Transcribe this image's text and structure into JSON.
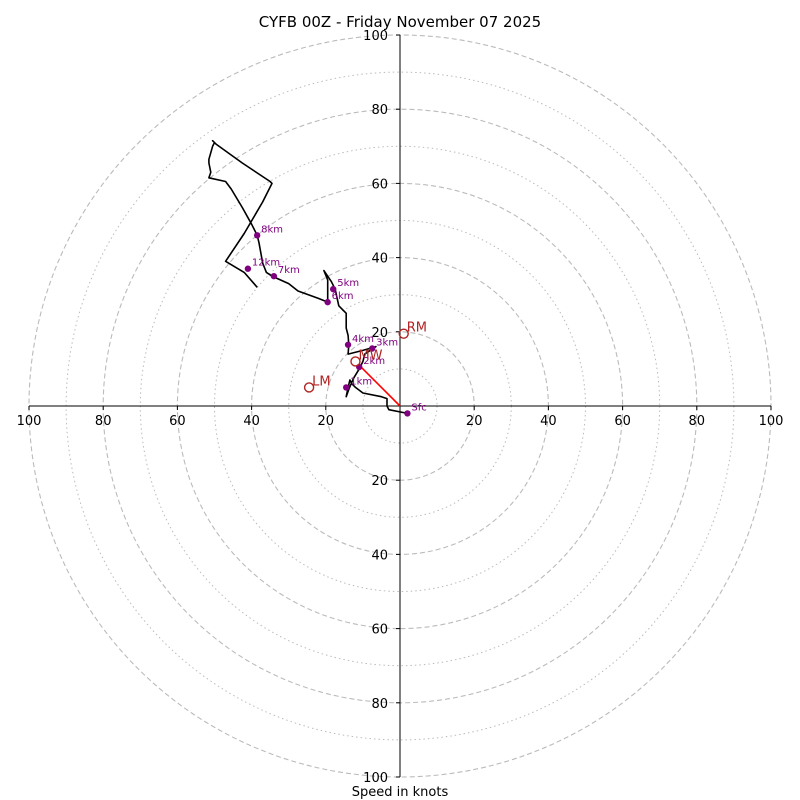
{
  "chart_data": {
    "type": "hodograph",
    "title": "CYFB 00Z - Friday November 07 2025",
    "xlabel": "Speed in knots",
    "units": "knots",
    "ring_max": 100,
    "rings_dashed": [
      20,
      40,
      60,
      80,
      100
    ],
    "rings_dotted": [
      10,
      30,
      50,
      70,
      90
    ],
    "x_tick_labels": [
      "100",
      "80",
      "60",
      "40",
      "20",
      "20",
      "40",
      "60",
      "80",
      "100"
    ],
    "x_tick_values": [
      -100,
      -80,
      -60,
      -40,
      -20,
      20,
      40,
      60,
      80,
      100
    ],
    "y_tick_labels": [
      "100",
      "80",
      "60",
      "40",
      "20",
      "20",
      "40",
      "60",
      "80",
      "100"
    ],
    "y_tick_values": [
      100,
      80,
      60,
      40,
      20,
      -20,
      -40,
      -60,
      -80,
      -100
    ],
    "colors": {
      "trace": "#000000",
      "height_marker": "#800080",
      "motion": "#b22222",
      "shear_vector": "#ff0000",
      "grid": "#bbbbbb"
    },
    "trace": [
      [
        2,
        -2
      ],
      [
        -3,
        -1
      ],
      [
        -3.5,
        0
      ],
      [
        -3.5,
        2
      ],
      [
        -5,
        2.5
      ],
      [
        -10,
        3.5
      ],
      [
        -12,
        5
      ],
      [
        -13,
        6
      ],
      [
        -13.5,
        7
      ],
      [
        -14,
        5
      ],
      [
        -14.5,
        2.5
      ],
      [
        -13.8,
        4.5
      ],
      [
        -12.5,
        7.5
      ],
      [
        -11,
        10
      ],
      [
        -10,
        12
      ],
      [
        -9.5,
        14
      ],
      [
        -6.5,
        16
      ],
      [
        -10,
        15
      ],
      [
        -14,
        14
      ],
      [
        -13.8,
        16.5
      ],
      [
        -14,
        19
      ],
      [
        -14.5,
        21
      ],
      [
        -14.5,
        25
      ],
      [
        -16.5,
        27
      ],
      [
        -17.5,
        31.5
      ],
      [
        -18.5,
        33.5
      ],
      [
        -20.5,
        36.5
      ],
      [
        -19.5,
        34
      ],
      [
        -19.5,
        28
      ],
      [
        -22,
        29
      ],
      [
        -27.5,
        31
      ],
      [
        -30,
        33
      ],
      [
        -34.5,
        35
      ],
      [
        -36,
        36
      ],
      [
        -37,
        38.5
      ],
      [
        -38,
        44
      ],
      [
        -38.5,
        46
      ],
      [
        -40,
        49
      ],
      [
        -42.5,
        53.5
      ],
      [
        -45.5,
        58.5
      ],
      [
        -47,
        60.5
      ],
      [
        -51.5,
        61.5
      ],
      [
        -51,
        63
      ],
      [
        -51.5,
        65.5
      ],
      [
        -51.5,
        66.5
      ],
      [
        -50.5,
        70
      ],
      [
        -50,
        71
      ],
      [
        -50.5,
        71.5
      ],
      [
        -49.5,
        70.5
      ],
      [
        -42.5,
        65.5
      ],
      [
        -35,
        60.5
      ],
      [
        -34.5,
        60
      ],
      [
        -37,
        55
      ],
      [
        -42,
        46.5
      ],
      [
        -47,
        39
      ],
      [
        -42,
        36
      ],
      [
        -38.5,
        32
      ]
    ],
    "height_markers": [
      {
        "label": "Sfc",
        "u": 2,
        "v": -2
      },
      {
        "label": "1km",
        "u": -14.5,
        "v": 5
      },
      {
        "label": "2km",
        "u": -11,
        "v": 10.5
      },
      {
        "label": "3km",
        "u": -7.5,
        "v": 15.5
      },
      {
        "label": "4km",
        "u": -14,
        "v": 16.5
      },
      {
        "label": "5km",
        "u": -18,
        "v": 31.5
      },
      {
        "label": "6km",
        "u": -19.5,
        "v": 28
      },
      {
        "label": "7km",
        "u": -34,
        "v": 35
      },
      {
        "label": "8km",
        "u": -38.5,
        "v": 46
      },
      {
        "label": "12km",
        "u": -41,
        "v": 37
      }
    ],
    "motion_markers": [
      {
        "label": "RM",
        "u": 1,
        "v": 19.5
      },
      {
        "label": "LM",
        "u": -24.5,
        "v": 5
      },
      {
        "label": "MW",
        "u": -12,
        "v": 12
      }
    ],
    "shear_vector": {
      "from_u": 0,
      "from_v": 0,
      "to_u": -11,
      "to_v": 11
    }
  }
}
